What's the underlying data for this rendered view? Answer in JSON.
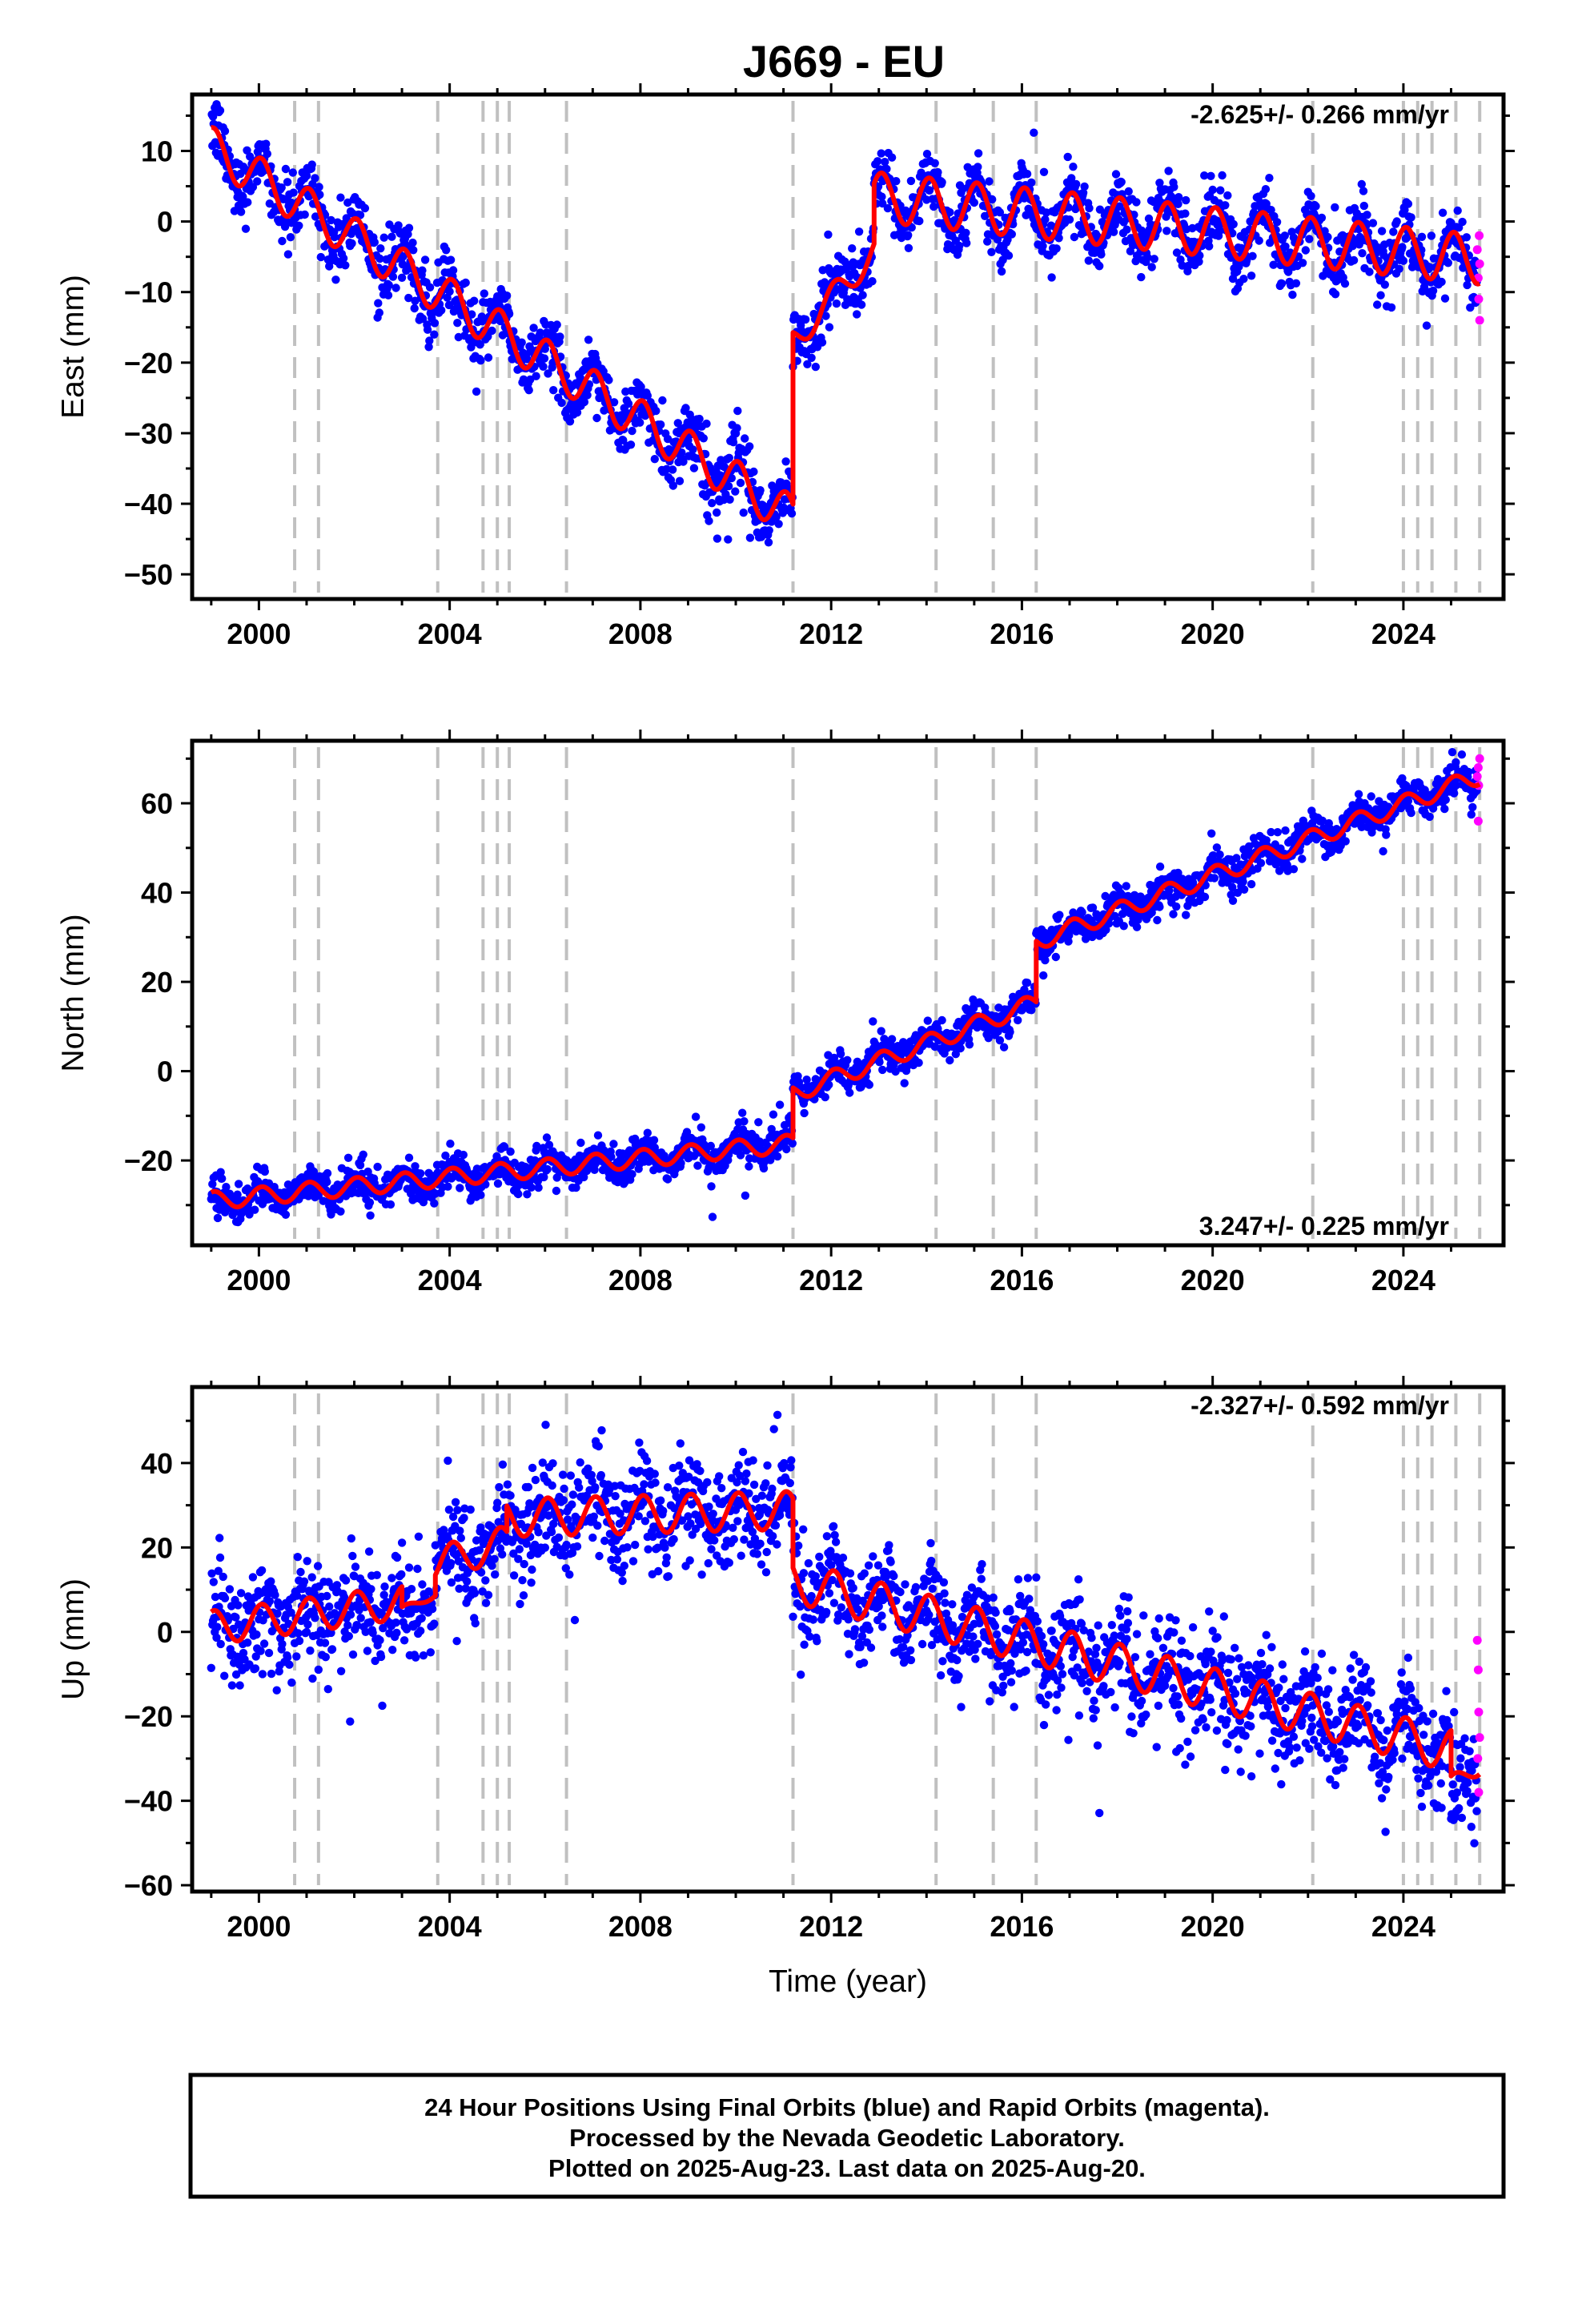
{
  "title": "J669 - EU",
  "colors": {
    "final": "#0000ff",
    "rapid": "#ff00ff",
    "model": "#ff0000",
    "break_line": "#c0c0c0"
  },
  "chart_data": [
    {
      "type": "scatter",
      "component": "east",
      "ylabel": "East (mm)",
      "xlabel": "",
      "xlim": [
        1998.6,
        2026.1
      ],
      "ylim": [
        -53.5,
        18
      ],
      "xticks": [
        2000,
        2004,
        2008,
        2012,
        2016,
        2020,
        2024
      ],
      "yticks": [
        10,
        0,
        -10,
        -20,
        -30,
        -40,
        -50
      ],
      "rate_label": "-2.625+/- 0.266 mm/yr",
      "rate_position": "top-right",
      "model_segments": [
        {
          "start": 1999.0,
          "end": 2011.2,
          "y0": 10.5,
          "slope": -4.3,
          "amp": 3.0
        },
        {
          "start": 2011.2,
          "end": 2012.9,
          "y0": -17.0,
          "slope": 7.5,
          "amp": 2.0
        },
        {
          "start": 2012.9,
          "end": 2025.6,
          "y0": 3.5,
          "slope": -0.7,
          "amp": 3.5
        }
      ],
      "scatter_sd": 2.3,
      "rapid_points": [
        [
          2025.55,
          -4
        ],
        [
          2025.57,
          -8
        ],
        [
          2025.58,
          -11
        ],
        [
          2025.6,
          -14
        ],
        [
          2025.59,
          -2
        ],
        [
          2025.6,
          -6
        ]
      ]
    },
    {
      "type": "scatter",
      "component": "north",
      "ylabel": "North (mm)",
      "xlabel": "",
      "xlim": [
        1998.6,
        2026.1
      ],
      "ylim": [
        -39,
        74
      ],
      "xticks": [
        2000,
        2004,
        2008,
        2012,
        2016,
        2020,
        2024
      ],
      "yticks": [
        60,
        40,
        20,
        0,
        -20
      ],
      "rate_label": "3.247+/- 0.225 mm/yr",
      "rate_position": "bottom-right",
      "model_segments": [
        {
          "start": 1999.0,
          "end": 2011.2,
          "y0": -29.0,
          "slope": 1.05,
          "amp": 2.0
        },
        {
          "start": 2011.2,
          "end": 2016.3,
          "y0": -5.0,
          "slope": 4.0,
          "amp": 2.0
        },
        {
          "start": 2016.3,
          "end": 2025.6,
          "y0": 29.0,
          "slope": 4.0,
          "amp": 2.0
        }
      ],
      "scatter_sd": 2.0,
      "rapid_points": [
        [
          2025.55,
          66
        ],
        [
          2025.57,
          68
        ],
        [
          2025.58,
          64
        ],
        [
          2025.6,
          70
        ],
        [
          2025.57,
          56
        ]
      ]
    },
    {
      "type": "scatter",
      "component": "up",
      "ylabel": "Up (mm)",
      "xlabel": "Time (year)",
      "xlim": [
        1998.6,
        2026.1
      ],
      "ylim": [
        -61.5,
        58
      ],
      "xticks": [
        2000,
        2004,
        2008,
        2012,
        2016,
        2020,
        2024
      ],
      "yticks": [
        40,
        20,
        0,
        -20,
        -40,
        -60
      ],
      "rate_label": "-2.327+/- 0.592 mm/yr",
      "rate_position": "top-right",
      "model_segments": [
        {
          "start": 1999.0,
          "end": 2003.0,
          "y0": 1.0,
          "slope": 1.5,
          "amp": 4.0
        },
        {
          "start": 2003.0,
          "end": 2003.7,
          "y0": 5.0,
          "slope": 6.0,
          "amp": 1.0
        },
        {
          "start": 2003.7,
          "end": 2005.2,
          "y0": 16.0,
          "slope": 3.5,
          "amp": 4.0
        },
        {
          "start": 2005.2,
          "end": 2011.2,
          "y0": 27.0,
          "slope": 0.3,
          "amp": 4.5
        },
        {
          "start": 2011.2,
          "end": 2025.0,
          "y0": 12.0,
          "slope": -2.9,
          "amp": 5.0
        },
        {
          "start": 2025.0,
          "end": 2025.6,
          "y0": -36.0,
          "slope": 7.0,
          "amp": 2.0
        }
      ],
      "scatter_sd": 6.0,
      "rapid_points": [
        [
          2025.55,
          -2
        ],
        [
          2025.57,
          -9
        ],
        [
          2025.58,
          -19
        ],
        [
          2025.6,
          -25
        ],
        [
          2025.56,
          -30
        ],
        [
          2025.58,
          -38
        ]
      ]
    }
  ],
  "break_years": [
    2000.75,
    2001.25,
    2003.75,
    2004.7,
    2005.0,
    2005.25,
    2006.45,
    2011.2,
    2014.2,
    2015.4,
    2016.3,
    2022.1,
    2024.0,
    2024.3,
    2024.6,
    2025.1,
    2025.6
  ],
  "footer": {
    "line1": "24 Hour Positions Using Final Orbits (blue) and Rapid Orbits (magenta).",
    "line2": "Processed by the Nevada Geodetic Laboratory.",
    "line3": "Plotted on 2025-Aug-23. Last data on 2025-Aug-20."
  }
}
